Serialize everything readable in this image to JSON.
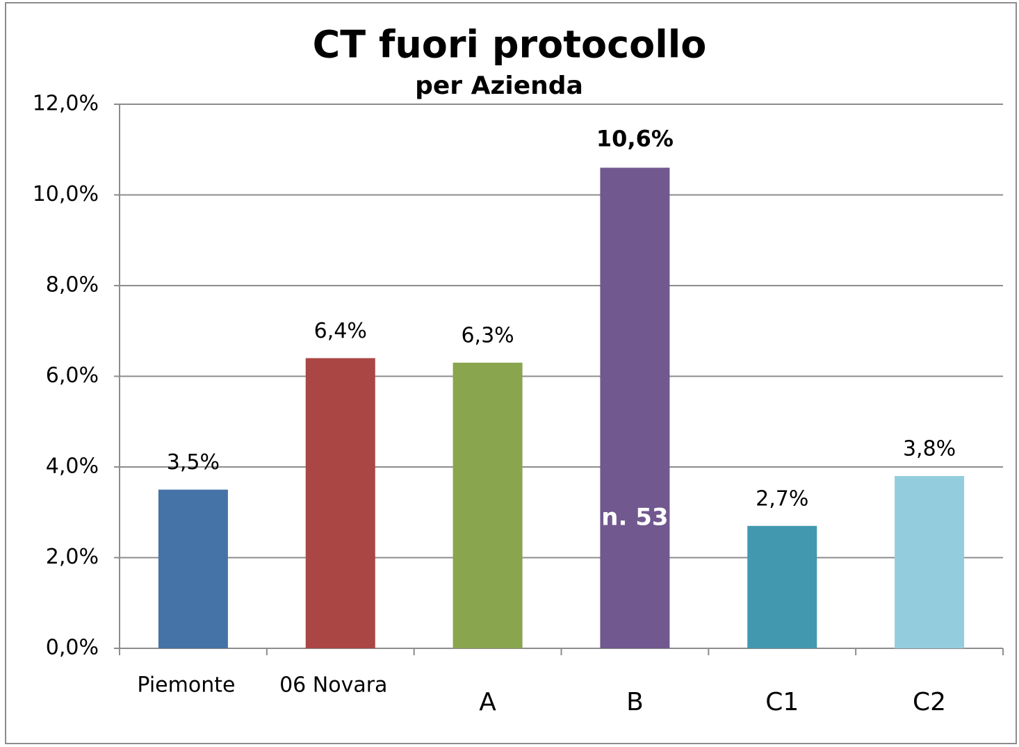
{
  "chart_data": {
    "type": "bar",
    "title": "CT fuori protocollo",
    "subtitle": "per Azienda",
    "categories": [
      "Piemonte",
      "06 Novara",
      "A",
      "B",
      "C1",
      "C2"
    ],
    "values": [
      3.5,
      6.4,
      6.3,
      10.6,
      2.7,
      3.8
    ],
    "value_labels": [
      "3,5%",
      "6,4%",
      "6,3%",
      "10,6%",
      "2,7%",
      "3,8%"
    ],
    "colors": [
      "#4572a7",
      "#aa4643",
      "#89a54e",
      "#71588f",
      "#4198af",
      "#93cddd"
    ],
    "annotation": "n. 53",
    "ylim": [
      0,
      12
    ],
    "yticks": [
      {
        "value": 0,
        "label": "0,0%"
      },
      {
        "value": 2,
        "label": "2,0%"
      },
      {
        "value": 4,
        "label": "4,0%"
      },
      {
        "value": 6,
        "label": "6,0%"
      },
      {
        "value": 8,
        "label": "8,0%"
      },
      {
        "value": 10,
        "label": "10,0%"
      },
      {
        "value": 12,
        "label": "12,0%"
      }
    ],
    "grid": true
  }
}
